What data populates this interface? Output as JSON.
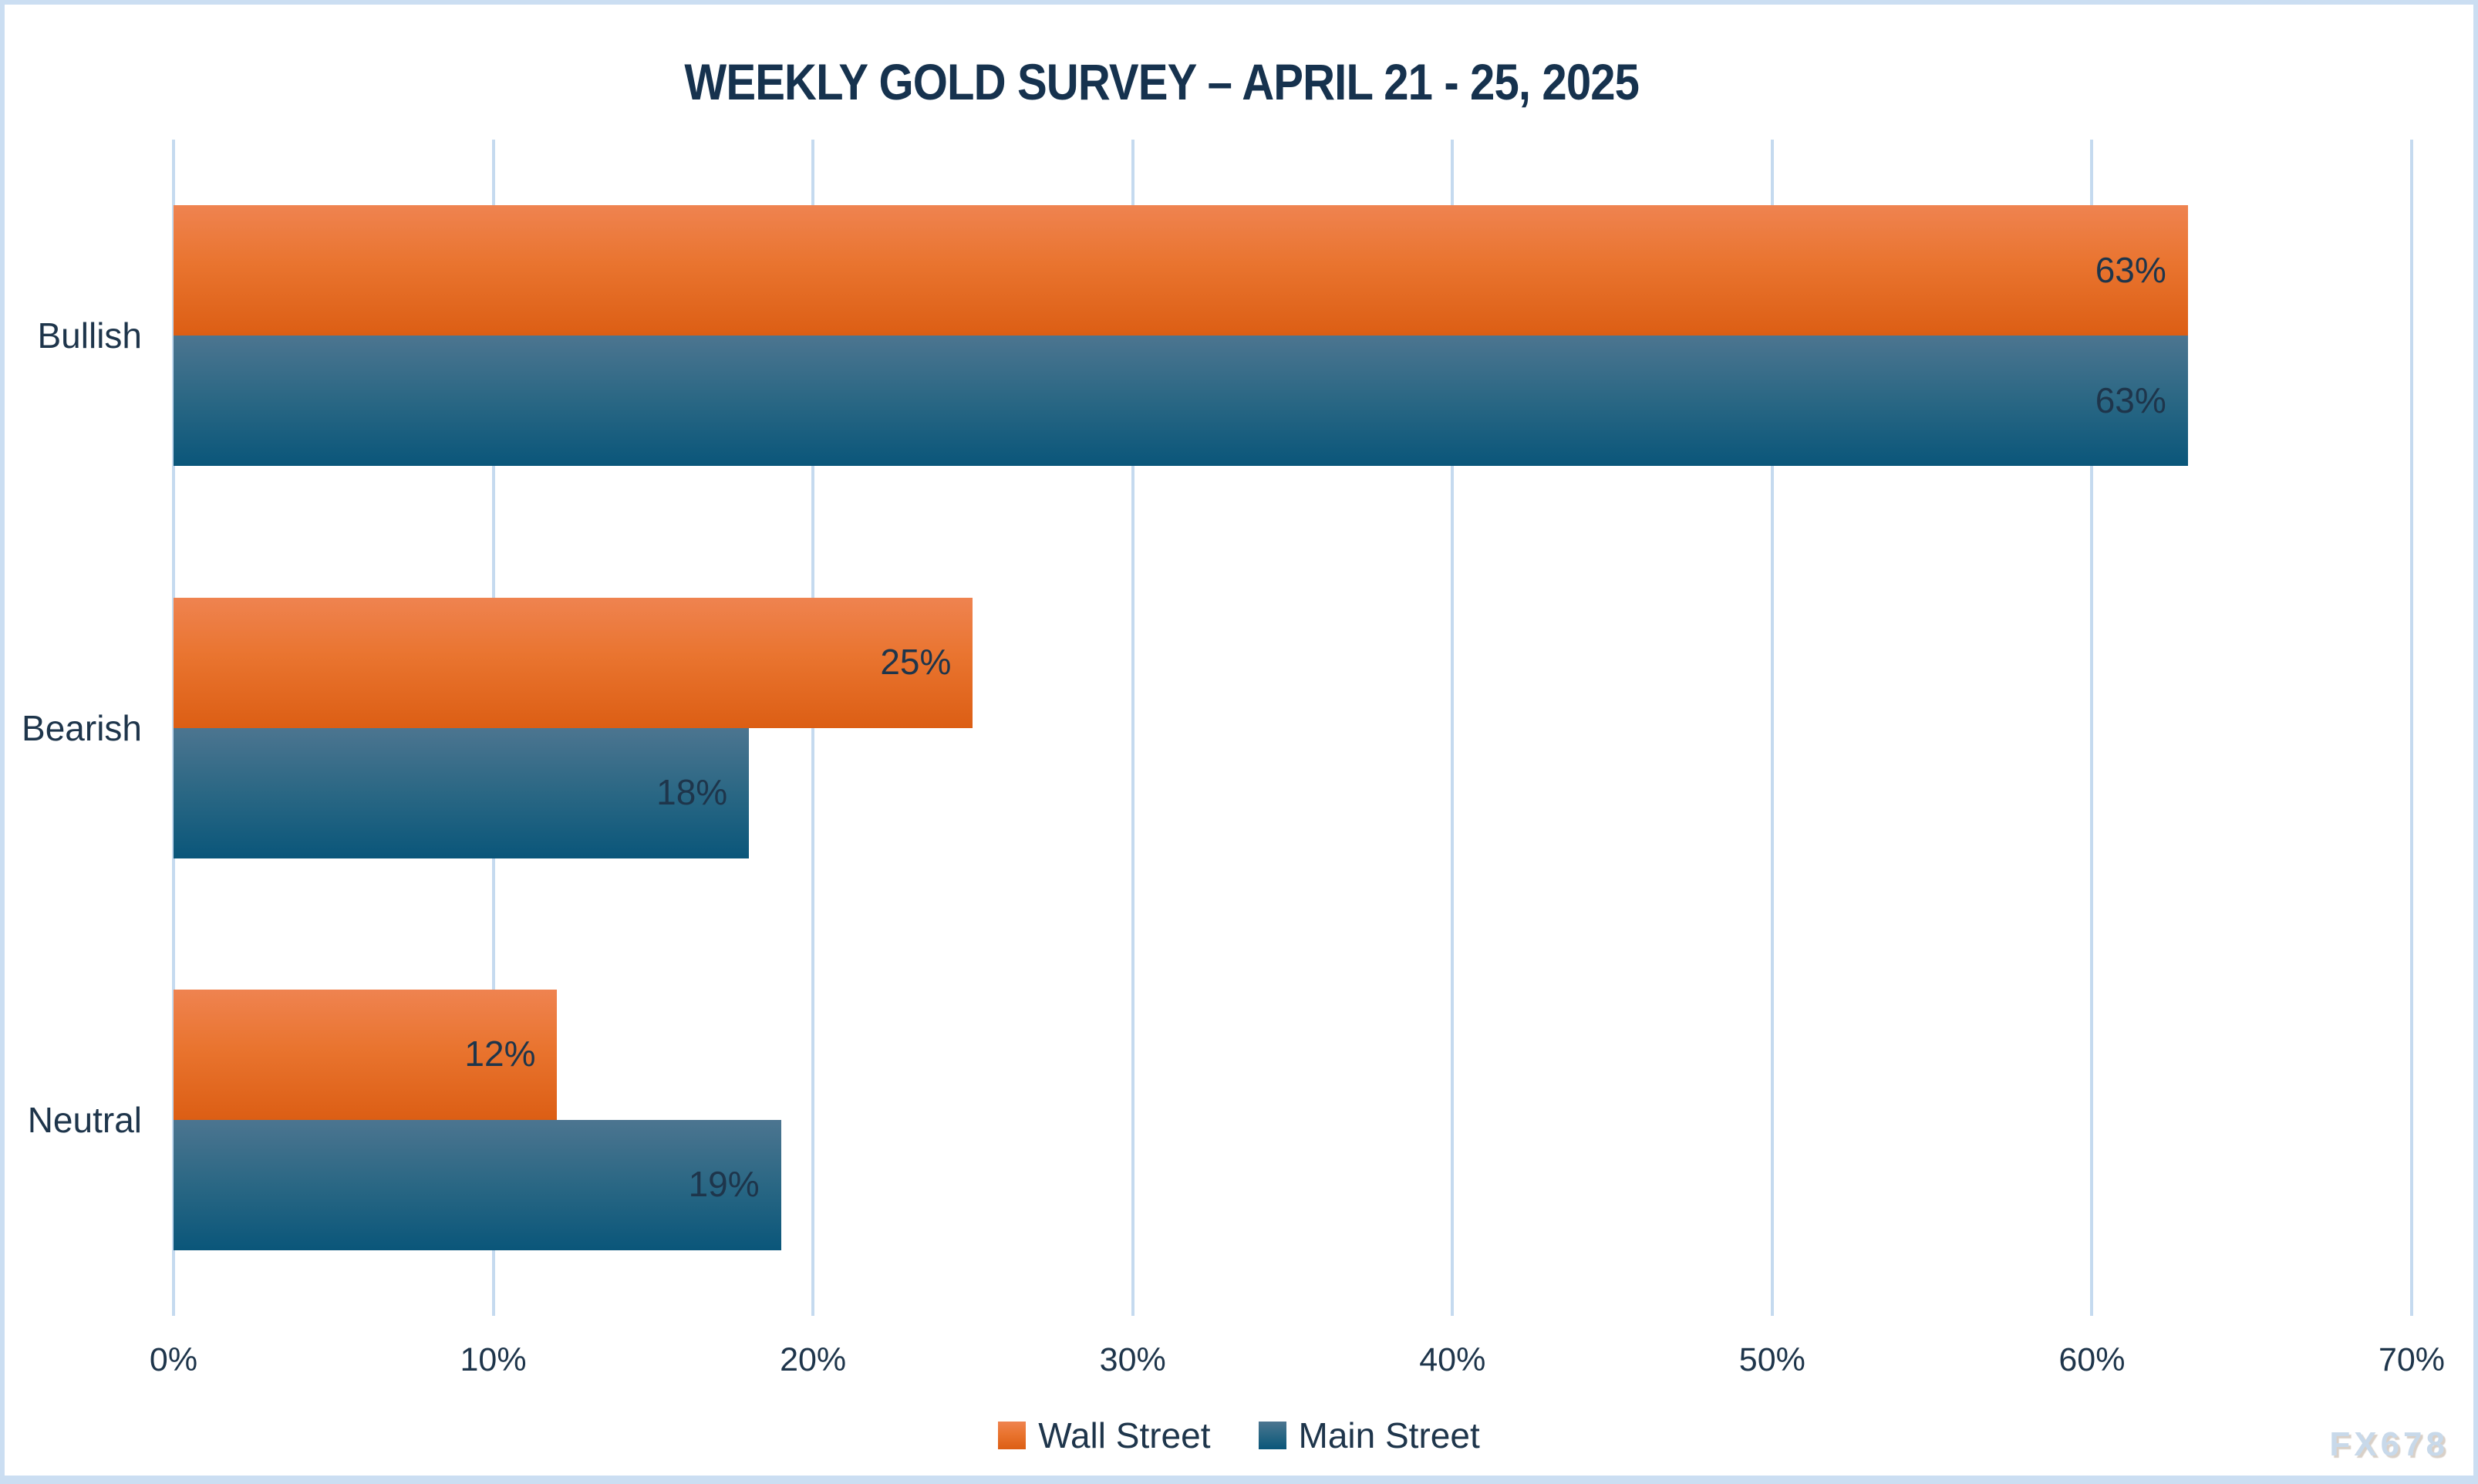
{
  "title": "WEEKLY GOLD SURVEY – APRIL 21 - 25, 2025",
  "watermark": "FX678",
  "colors": {
    "border": "#CBDEF2",
    "gridline": "#C5DAEF",
    "title_text": "#16324E",
    "label_text": "#1E354B",
    "wall_street_top": "#EF8350",
    "wall_street_bottom": "#DC5E14",
    "main_street_top": "#4C7590",
    "main_street_bottom": "#0A567A",
    "watermark_text": "#C8D9EA"
  },
  "chart_data": {
    "type": "bar",
    "orientation": "horizontal",
    "title": "WEEKLY GOLD SURVEY – APRIL 21 - 25, 2025",
    "categories": [
      "Bullish",
      "Bearish",
      "Neutral"
    ],
    "series": [
      {
        "name": "Wall Street",
        "values": [
          63,
          25,
          12
        ],
        "labels": [
          "63%",
          "25%",
          "12%"
        ],
        "color_class": "bar-orange"
      },
      {
        "name": "Main Street",
        "values": [
          63,
          18,
          19
        ],
        "labels": [
          "63%",
          "18%",
          "19%"
        ],
        "color_class": "bar-blue"
      }
    ],
    "value_suffix": "%",
    "xlabel": "",
    "ylabel": "",
    "xlim": [
      0,
      70
    ],
    "x_tick_labels": [
      "0%",
      "10%",
      "20%",
      "30%",
      "40%",
      "50%",
      "60%",
      "70%"
    ],
    "grid": true,
    "data_labels": true,
    "legend_position": "bottom"
  }
}
